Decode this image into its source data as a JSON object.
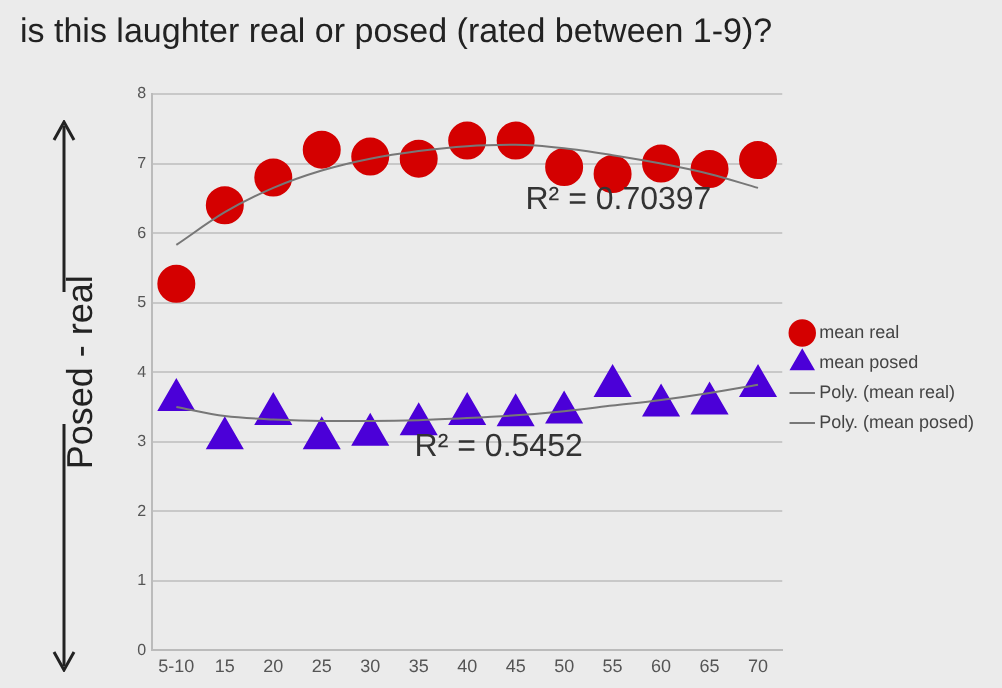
{
  "chart_data": {
    "type": "scatter",
    "title": "is this laughter real or posed (rated between 1-9)?",
    "ylabel": "Posed - real",
    "categories": [
      "5-10",
      "15",
      "20",
      "25",
      "30",
      "35",
      "40",
      "45",
      "50",
      "55",
      "60",
      "65",
      "70"
    ],
    "series": [
      {
        "name": "mean real",
        "marker": "circle",
        "color": "#d40000",
        "values": [
          5.27,
          6.4,
          6.8,
          7.2,
          7.1,
          7.07,
          7.33,
          7.33,
          6.95,
          6.85,
          7.0,
          6.92,
          7.05
        ]
      },
      {
        "name": "mean posed",
        "marker": "triangle",
        "color": "#4b00d8",
        "values": [
          3.6,
          3.05,
          3.4,
          3.05,
          3.1,
          3.25,
          3.4,
          3.38,
          3.42,
          3.8,
          3.52,
          3.55,
          3.8
        ]
      },
      {
        "name": "Poly. (mean real)",
        "type": "line",
        "marker": "none",
        "color": "#777777",
        "values": [
          5.83,
          6.3,
          6.65,
          6.9,
          7.07,
          7.18,
          7.25,
          7.27,
          7.22,
          7.12,
          7.0,
          6.85,
          6.65
        ]
      },
      {
        "name": "Poly. (mean posed)",
        "type": "line",
        "marker": "none",
        "color": "#777777",
        "values": [
          3.5,
          3.37,
          3.32,
          3.3,
          3.3,
          3.31,
          3.34,
          3.38,
          3.44,
          3.52,
          3.6,
          3.7,
          3.82
        ]
      }
    ],
    "ylim": [
      0,
      8
    ],
    "yticks": [
      0,
      1,
      2,
      3,
      4,
      5,
      6,
      7,
      8
    ],
    "grid": "y",
    "legend": "right",
    "annotations": [
      "R² = 0.70397",
      "R² = 0.5452"
    ]
  }
}
